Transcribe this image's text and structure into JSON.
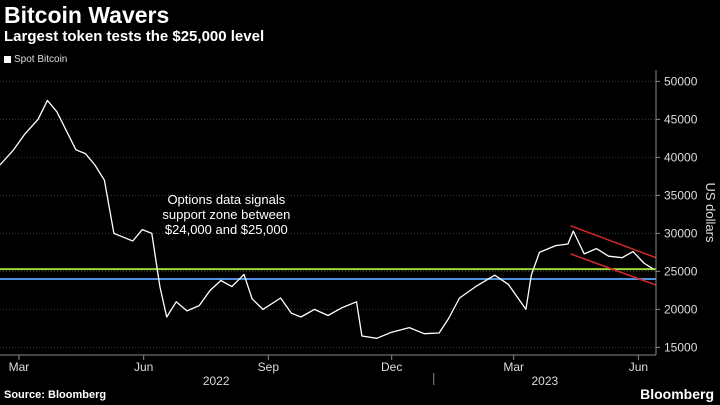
{
  "header": {
    "title": "Bitcoin Wavers",
    "subtitle": "Largest token tests the $25,000 level"
  },
  "footer": {
    "source": "Source: Bloomberg",
    "brand": "Bloomberg"
  },
  "colors": {
    "background": "#000000",
    "series": "#ffffff",
    "support_upper": "#9dd53a",
    "support_lower": "#4f8fe0",
    "channel": "#d62a2a",
    "grid": "#3a3a3a"
  },
  "chart_data": {
    "type": "line",
    "ylabel": "US dollars",
    "ylim": [
      14000,
      51500
    ],
    "yticks": [
      15000,
      20000,
      25000,
      30000,
      35000,
      40000,
      45000,
      50000
    ],
    "y_axis_position": "right",
    "grid": "horizontal dotted",
    "legend": {
      "position": "top-left",
      "entries": [
        "Spot Bitcoin"
      ]
    },
    "x_ticks": [
      {
        "date": "2022-03-01",
        "label": "Mar"
      },
      {
        "date": "2022-06-01",
        "label": "Jun"
      },
      {
        "date": "2022-09-01",
        "label": "Sep"
      },
      {
        "date": "2022-12-01",
        "label": "Dec"
      },
      {
        "date": "2023-03-01",
        "label": "Mar"
      },
      {
        "date": "2023-06-01",
        "label": "Jun"
      }
    ],
    "x_groups": [
      {
        "label": "2022",
        "start": "2022-01-15",
        "end": "2022-12-31"
      },
      {
        "label": "2023",
        "start": "2023-01-01",
        "end": "2023-06-20"
      }
    ],
    "xlim": [
      "2022-02-15",
      "2023-06-14"
    ],
    "series": [
      {
        "name": "Spot Bitcoin",
        "points": [
          [
            "2022-02-15",
            39000
          ],
          [
            "2022-02-25",
            41000
          ],
          [
            "2022-03-05",
            43000
          ],
          [
            "2022-03-15",
            45000
          ],
          [
            "2022-03-22",
            47500
          ],
          [
            "2022-03-29",
            46000
          ],
          [
            "2022-04-05",
            43500
          ],
          [
            "2022-04-12",
            41000
          ],
          [
            "2022-04-19",
            40500
          ],
          [
            "2022-04-26",
            39000
          ],
          [
            "2022-05-03",
            37000
          ],
          [
            "2022-05-10",
            30000
          ],
          [
            "2022-05-17",
            29500
          ],
          [
            "2022-05-24",
            29000
          ],
          [
            "2022-05-31",
            30500
          ],
          [
            "2022-06-07",
            30000
          ],
          [
            "2022-06-13",
            23000
          ],
          [
            "2022-06-18",
            19000
          ],
          [
            "2022-06-25",
            21000
          ],
          [
            "2022-07-03",
            19800
          ],
          [
            "2022-07-12",
            20500
          ],
          [
            "2022-07-20",
            22500
          ],
          [
            "2022-07-28",
            23800
          ],
          [
            "2022-08-05",
            23000
          ],
          [
            "2022-08-14",
            24600
          ],
          [
            "2022-08-20",
            21400
          ],
          [
            "2022-08-28",
            20000
          ],
          [
            "2022-09-10",
            21500
          ],
          [
            "2022-09-18",
            19500
          ],
          [
            "2022-09-25",
            19000
          ],
          [
            "2022-10-05",
            20000
          ],
          [
            "2022-10-15",
            19200
          ],
          [
            "2022-10-25",
            20200
          ],
          [
            "2022-11-05",
            21000
          ],
          [
            "2022-11-09",
            16500
          ],
          [
            "2022-11-20",
            16200
          ],
          [
            "2022-12-01",
            17000
          ],
          [
            "2022-12-14",
            17600
          ],
          [
            "2022-12-25",
            16800
          ],
          [
            "2023-01-05",
            16900
          ],
          [
            "2023-01-12",
            18800
          ],
          [
            "2023-01-20",
            21500
          ],
          [
            "2023-02-01",
            23000
          ],
          [
            "2023-02-15",
            24500
          ],
          [
            "2023-02-25",
            23300
          ],
          [
            "2023-03-10",
            20000
          ],
          [
            "2023-03-14",
            24500
          ],
          [
            "2023-03-20",
            27500
          ],
          [
            "2023-04-01",
            28400
          ],
          [
            "2023-04-10",
            28600
          ],
          [
            "2023-04-14",
            30300
          ],
          [
            "2023-04-22",
            27300
          ],
          [
            "2023-05-01",
            28000
          ],
          [
            "2023-05-10",
            27000
          ],
          [
            "2023-05-20",
            26800
          ],
          [
            "2023-05-28",
            27600
          ],
          [
            "2023-06-05",
            26100
          ],
          [
            "2023-06-12",
            25300
          ]
        ]
      }
    ],
    "reference_lines": [
      {
        "type": "horizontal",
        "y": 25300,
        "color": "#9dd53a"
      },
      {
        "type": "horizontal",
        "y": 24000,
        "color": "#4f8fe0"
      }
    ],
    "channel_lines": [
      {
        "from": [
          "2023-04-12",
          31000
        ],
        "to": [
          "2023-06-14",
          26800
        ]
      },
      {
        "from": [
          "2023-04-12",
          27300
        ],
        "to": [
          "2023-06-14",
          23200
        ]
      }
    ],
    "annotation": {
      "lines": [
        "Options data signals",
        "support zone between",
        "$24,000 and $25,000"
      ],
      "anchor_date": "2022-08-01",
      "anchor_y": 32000
    }
  }
}
